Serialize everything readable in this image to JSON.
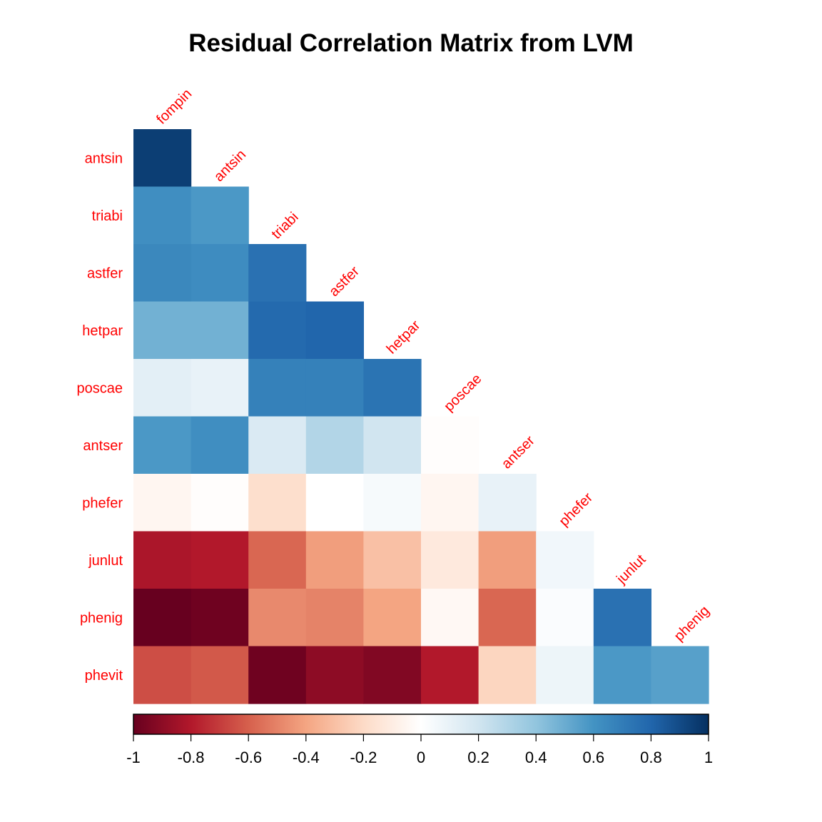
{
  "chart_data": {
    "type": "heatmap",
    "subtype": "lower-triangular correlation matrix",
    "title": "Residual Correlation Matrix from LVM",
    "row_labels": [
      "antsin",
      "triabi",
      "astfer",
      "hetpar",
      "poscae",
      "antser",
      "phefer",
      "junlut",
      "phenig",
      "phevit"
    ],
    "col_labels": [
      "fompin",
      "antsin",
      "triabi",
      "astfer",
      "hetpar",
      "poscae",
      "antser",
      "phefer",
      "junlut",
      "phenig"
    ],
    "label_color": "#FF0000",
    "values": [
      [
        0.95
      ],
      [
        0.62,
        0.58
      ],
      [
        0.65,
        0.63,
        0.75
      ],
      [
        0.48,
        0.48,
        0.78,
        0.8
      ],
      [
        0.12,
        0.1,
        0.68,
        0.68,
        0.74
      ],
      [
        0.58,
        0.62,
        0.16,
        0.3,
        0.2,
        -0.01
      ],
      [
        -0.05,
        -0.01,
        -0.18,
        0.0,
        0.04,
        -0.05,
        0.1
      ],
      [
        -0.82,
        -0.8,
        -0.58,
        -0.42,
        -0.3,
        -0.12,
        -0.42,
        0.06
      ],
      [
        -1.0,
        -0.98,
        -0.48,
        -0.5,
        -0.4,
        -0.04,
        -0.58,
        0.02,
        0.75
      ],
      [
        -0.65,
        -0.62,
        -0.98,
        -0.9,
        -0.93,
        -0.8,
        -0.22,
        0.08,
        0.58,
        0.55
      ]
    ],
    "colorbar": {
      "range": [
        -1,
        1
      ],
      "ticks": [
        "-1",
        "-0.8",
        "-0.6",
        "-0.4",
        "-0.2",
        "0",
        "0.2",
        "0.4",
        "0.6",
        "0.8",
        "1"
      ],
      "palette": [
        "#67001F",
        "#B2182B",
        "#D6604D",
        "#F4A582",
        "#FDDBC7",
        "#FFFFFF",
        "#D1E5F0",
        "#92C5DE",
        "#4393C3",
        "#2166AC",
        "#053061"
      ]
    }
  }
}
